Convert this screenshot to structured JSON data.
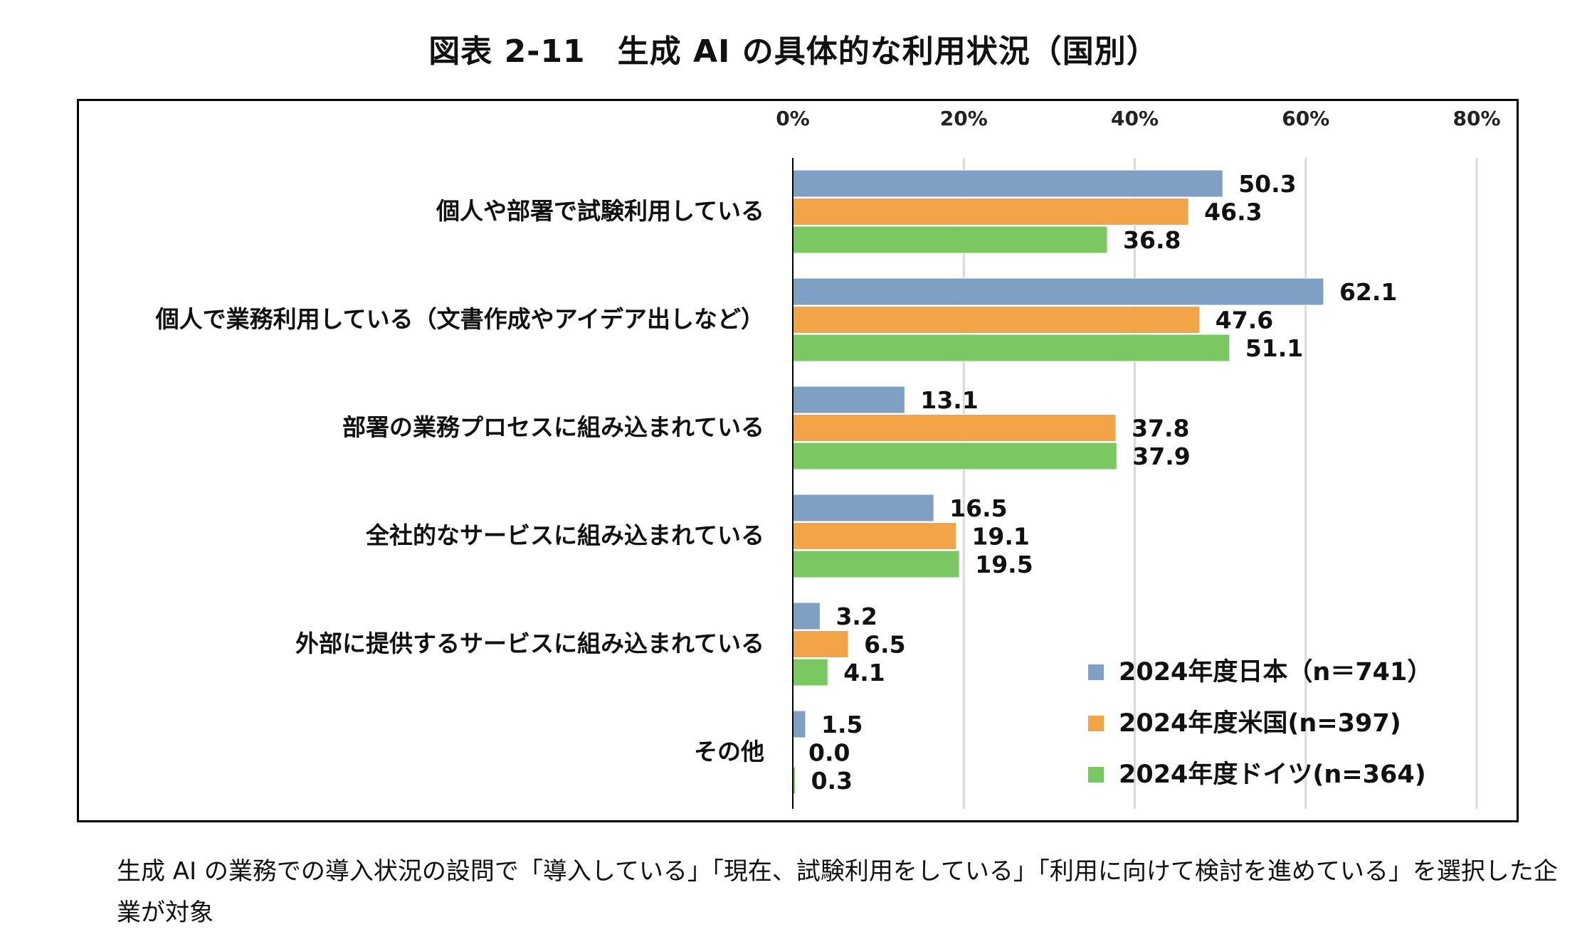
{
  "title": "図表 2-11　生成 AI の具体的な利用状況（国別）",
  "footnote": "生成 AI の業務での導入状況の設問で「導入している」「現在、試験利用をしている」「利用に向けて検討を進めている」を選択した企業が対象",
  "chart_data": {
    "type": "bar",
    "orientation": "horizontal",
    "xlim": [
      0,
      80
    ],
    "x_ticks": [
      "0%",
      "20%",
      "40%",
      "60%",
      "80%"
    ],
    "x_axis_position": "top",
    "grid": true,
    "legend_position": "bottom-right",
    "categories": [
      "個人や部署で試験利用している",
      "個人で業務利用している（文書作成やアイデア出しなど）",
      "部署の業務プロセスに組み込まれている",
      "全社的なサービスに組み込まれている",
      "外部に提供するサービスに組み込まれている",
      "その他"
    ],
    "series": [
      {
        "name": "2024年度日本（n＝741）",
        "color": "#7f9fc4",
        "values": [
          50.3,
          62.1,
          13.1,
          16.5,
          3.2,
          1.5
        ]
      },
      {
        "name": "2024年度米国(n=397)",
        "color": "#f2a446",
        "values": [
          46.3,
          47.6,
          37.8,
          19.1,
          6.5,
          0.0
        ]
      },
      {
        "name": "2024年度ドイツ(n=364)",
        "color": "#7bc762",
        "values": [
          36.8,
          51.1,
          37.9,
          19.5,
          4.1,
          0.3
        ]
      }
    ]
  }
}
